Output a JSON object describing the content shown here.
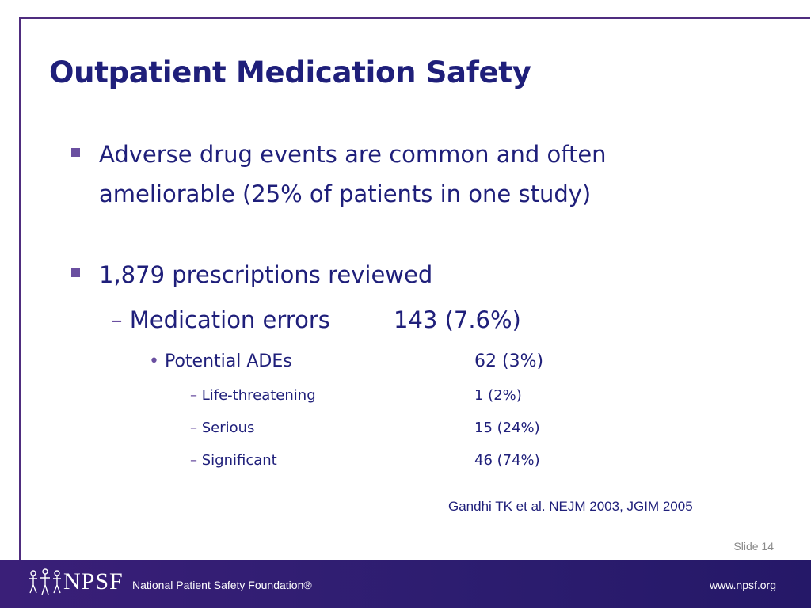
{
  "slide": {
    "title": "Outpatient Medication Safety",
    "bullets": [
      {
        "text": "Adverse drug events are common and often ameliorable (25% of patients in one study)"
      },
      {
        "text": "1,879 prescriptions reviewed"
      }
    ],
    "medication_errors": {
      "label": "Medication errors",
      "value": "143 (7.6%)"
    },
    "potential_ades": {
      "label": "Potential ADEs",
      "value": "62 (3%)"
    },
    "breakdown": [
      {
        "label": "Life-threatening",
        "value": "1 (2%)"
      },
      {
        "label": "Serious",
        "value": "15 (24%)"
      },
      {
        "label": "Significant",
        "value": "46 (74%)"
      }
    ],
    "citation": "Gandhi TK et al. NEJM 2003, JGIM 2005",
    "slide_number": "Slide 14"
  },
  "footer": {
    "logo_text": "NPSF",
    "org_name": "National Patient Safety Foundation®",
    "url": "www.npsf.org"
  },
  "colors": {
    "title": "#1f1f7a",
    "accent": "#6a4fa0",
    "footer_bg": "#2d1d70",
    "frame": "#4f2d7f"
  }
}
